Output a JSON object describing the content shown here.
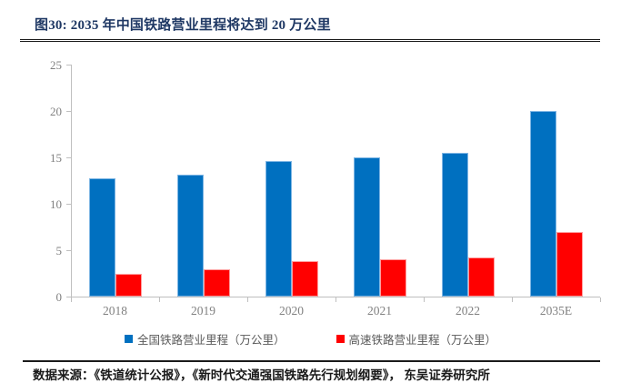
{
  "header": {
    "title": "图30:  2035 年中国铁路营业里程将达到 20 万公里"
  },
  "chart_data": {
    "type": "bar",
    "categories": [
      "2018",
      "2019",
      "2020",
      "2021",
      "2022",
      "2035E"
    ],
    "series": [
      {
        "name": "全国铁路营业里程（万公里）",
        "color": "#0070C0",
        "border_color": "#7EB6E4",
        "values": [
          12.7,
          13.1,
          14.6,
          15.0,
          15.5,
          20.0
        ]
      },
      {
        "name": "高速铁路营业里程（万公里）",
        "color": "#FF0000",
        "border_color": "#FF9E9E",
        "values": [
          2.5,
          2.9,
          3.8,
          4.0,
          4.2,
          7.0
        ]
      }
    ],
    "title": "2035 年中国铁路营业里程将达到 20 万公里",
    "xlabel": "",
    "ylabel": "",
    "ylim": [
      0,
      25
    ],
    "ytick_step": 5,
    "yticks": [
      0,
      5,
      10,
      15,
      20,
      25
    ],
    "grid": false,
    "legend_position": "bottom"
  },
  "colors": {
    "title_text": "#1F3864",
    "axis_line": "#BFBFBF",
    "tick_label": "#808080",
    "legend_text": "#595959",
    "rule": "#1a1a1a"
  },
  "footer": {
    "source": "数据来源：《铁道统计公报》，《新时代交通强国铁路先行规划纲要》，  东吴证券研究所"
  }
}
